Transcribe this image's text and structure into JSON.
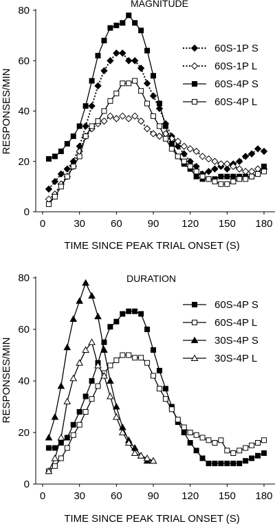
{
  "chart_data": [
    {
      "type": "line",
      "title": "MAGNITUDE",
      "xlabel": "TIME SINCE PEAK TRIAL ONSET (S)",
      "ylabel": "RESPONSES/MIN",
      "xlim": [
        0,
        185
      ],
      "ylim": [
        0,
        80
      ],
      "xticks": [
        0,
        30,
        60,
        90,
        120,
        150,
        180
      ],
      "yticks": [
        0,
        20,
        40,
        60,
        80
      ],
      "grid": false,
      "legend": "top-right",
      "series": [
        {
          "name": "60S-1P S",
          "marker": "diamond-filled",
          "line": "dotted",
          "x": [
            5,
            10,
            15,
            20,
            25,
            30,
            35,
            40,
            45,
            50,
            55,
            60,
            65,
            70,
            75,
            80,
            85,
            90,
            95,
            100,
            105,
            110,
            115,
            120,
            125,
            130,
            135,
            140,
            145,
            150,
            155,
            160,
            165,
            170,
            175,
            180
          ],
          "y": [
            9,
            12,
            15,
            17,
            20,
            26,
            34,
            42,
            50,
            56,
            60,
            63,
            63,
            60,
            60,
            57,
            51,
            46,
            41,
            35,
            30,
            26,
            23,
            20,
            18,
            15,
            16,
            17,
            18,
            17,
            19,
            20,
            22,
            23,
            25,
            24
          ]
        },
        {
          "name": "60S-1P L",
          "marker": "diamond-open",
          "line": "dotted",
          "x": [
            5,
            10,
            15,
            20,
            25,
            30,
            35,
            40,
            45,
            50,
            55,
            60,
            65,
            70,
            75,
            80,
            85,
            90,
            95,
            100,
            105,
            110,
            115,
            120,
            125,
            130,
            135,
            140,
            145,
            150,
            155,
            160,
            165,
            170,
            175,
            180
          ],
          "y": [
            5,
            7,
            11,
            14,
            18,
            24,
            30,
            33,
            35,
            36,
            38,
            37,
            38,
            37,
            38,
            36,
            33,
            31,
            30,
            31,
            29,
            28,
            26,
            25,
            24,
            22,
            21,
            20,
            19,
            19,
            18,
            17,
            16,
            16,
            17,
            17
          ]
        },
        {
          "name": "60S-4P S",
          "marker": "square-filled",
          "line": "solid",
          "x": [
            5,
            10,
            15,
            20,
            25,
            30,
            35,
            40,
            45,
            50,
            55,
            60,
            65,
            70,
            75,
            80,
            85,
            90,
            95,
            100,
            105,
            110,
            115,
            120,
            125,
            130,
            135,
            140,
            145,
            150,
            155,
            160,
            165,
            170,
            175,
            180
          ],
          "y": [
            21,
            22,
            24,
            27,
            30,
            34,
            42,
            52,
            62,
            68,
            73,
            74,
            75,
            78,
            75,
            72,
            64,
            54,
            43,
            34,
            27,
            22,
            19,
            17,
            14,
            13,
            13,
            13,
            14,
            14,
            14,
            14,
            14,
            14,
            15,
            18
          ]
        },
        {
          "name": "60S-4P L",
          "marker": "square-open",
          "line": "solid",
          "x": [
            5,
            10,
            15,
            20,
            25,
            30,
            35,
            40,
            45,
            50,
            55,
            60,
            65,
            70,
            75,
            80,
            85,
            90,
            95,
            100,
            105,
            110,
            115,
            120,
            125,
            130,
            135,
            140,
            145,
            150,
            155,
            160,
            165,
            170,
            175,
            180
          ],
          "y": [
            3,
            6,
            10,
            14,
            18,
            22,
            30,
            34,
            36,
            40,
            44,
            47,
            51,
            51,
            52,
            48,
            43,
            38,
            34,
            29,
            25,
            22,
            20,
            18,
            16,
            14,
            13,
            12,
            11,
            11,
            12,
            13,
            13,
            14,
            15,
            16
          ]
        }
      ]
    },
    {
      "type": "line",
      "title": "DURATION",
      "xlabel": "TIME SINCE PEAK TRIAL ONSET (S)",
      "ylabel": "RESPONSES/MIN",
      "xlim": [
        0,
        185
      ],
      "ylim": [
        0,
        80
      ],
      "xticks": [
        0,
        30,
        60,
        90,
        120,
        150,
        180
      ],
      "yticks": [
        0,
        20,
        40,
        60,
        80
      ],
      "grid": false,
      "legend": "top-right",
      "series": [
        {
          "name": "60S-4P S",
          "marker": "square-filled",
          "line": "solid",
          "x": [
            5,
            10,
            15,
            20,
            25,
            30,
            35,
            40,
            45,
            50,
            55,
            60,
            65,
            70,
            75,
            80,
            85,
            90,
            95,
            100,
            105,
            110,
            115,
            120,
            125,
            130,
            135,
            140,
            145,
            150,
            155,
            160,
            165,
            170,
            175,
            180
          ],
          "y": [
            14,
            14,
            16,
            18,
            23,
            28,
            34,
            40,
            47,
            55,
            61,
            63,
            66,
            67,
            67,
            66,
            60,
            52,
            44,
            37,
            30,
            24,
            20,
            16,
            13,
            10,
            8,
            8,
            8,
            8,
            8,
            8,
            9,
            10,
            11,
            12
          ]
        },
        {
          "name": "60S-4P L",
          "marker": "square-open",
          "line": "solid",
          "x": [
            5,
            10,
            15,
            20,
            25,
            30,
            35,
            40,
            45,
            50,
            55,
            60,
            65,
            70,
            75,
            80,
            85,
            90,
            95,
            100,
            105,
            110,
            115,
            120,
            125,
            130,
            135,
            140,
            145,
            150,
            155,
            160,
            165,
            170,
            175,
            180
          ],
          "y": [
            5,
            7,
            10,
            14,
            19,
            23,
            28,
            33,
            38,
            43,
            46,
            48,
            50,
            50,
            49,
            49,
            47,
            42,
            37,
            33,
            29,
            25,
            22,
            20,
            19,
            18,
            17,
            16,
            17,
            13,
            12,
            13,
            14,
            15,
            16,
            17
          ]
        },
        {
          "name": "30S-4P S",
          "marker": "triangle-filled",
          "line": "solid",
          "x": [
            5,
            10,
            15,
            20,
            25,
            30,
            35,
            40,
            45,
            50,
            55,
            60,
            65,
            70,
            75,
            80,
            85,
            90
          ],
          "y": [
            18,
            26,
            38,
            53,
            64,
            71,
            78,
            73,
            65,
            52,
            40,
            30,
            22,
            17,
            14,
            11,
            9,
            9
          ]
        },
        {
          "name": "30S-4P L",
          "marker": "triangle-open",
          "line": "solid",
          "x": [
            5,
            10,
            15,
            20,
            25,
            30,
            35,
            40,
            45,
            50,
            55,
            60,
            65,
            70,
            75,
            80,
            85,
            90
          ],
          "y": [
            5,
            10,
            18,
            32,
            41,
            47,
            52,
            55,
            46,
            42,
            34,
            26,
            20,
            16,
            12,
            11,
            10,
            9
          ]
        }
      ]
    }
  ]
}
